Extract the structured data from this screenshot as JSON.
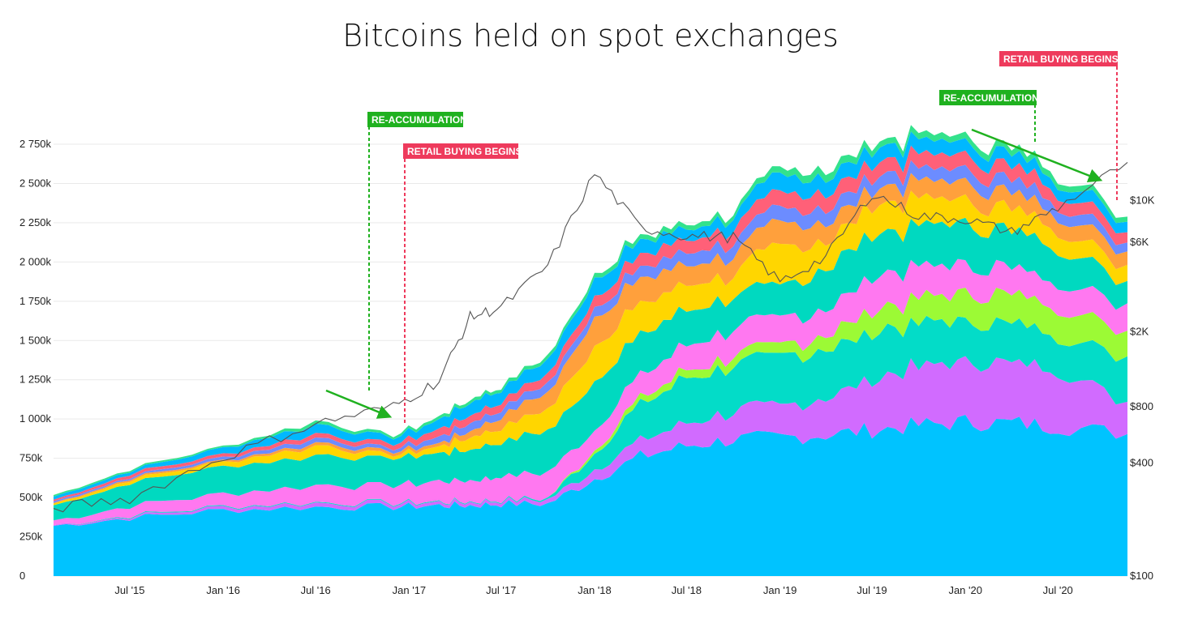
{
  "chart_data": {
    "type": "area",
    "title": "Bitcoins held on spot exchanges",
    "stacked": true,
    "x": [
      "2015-02-01",
      "2015-07-01",
      "2016-01-01",
      "2016-07-01",
      "2016-12-01",
      "2017-03-01",
      "2017-05-01",
      "2017-07-01",
      "2017-10-01",
      "2018-01-01",
      "2018-04-01",
      "2018-07-01",
      "2018-10-01",
      "2019-01-01",
      "2019-04-01",
      "2019-07-01",
      "2019-10-01",
      "2020-01-01",
      "2020-04-01",
      "2020-07-01",
      "2020-11-15"
    ],
    "x_ticks": [
      "Jul '15",
      "Jan '16",
      "Jul '16",
      "Jan '17",
      "Jul '17",
      "Jan '18",
      "Jul '18",
      "Jan '19",
      "Jul '19",
      "Jan '20",
      "Jul '20"
    ],
    "y_ticks": [
      "0",
      "250k",
      "500k",
      "750k",
      "1 000k",
      "1 250k",
      "1 500k",
      "1 750k",
      "2 000k",
      "2 250k",
      "2 500k",
      "2 750k"
    ],
    "ylim": [
      0,
      2750000
    ],
    "y2_ticks": [
      "$100",
      "$400",
      "$800",
      "$2K",
      "$6K",
      "$10K"
    ],
    "y2_values": [
      100,
      400,
      800,
      2000,
      6000,
      10000
    ],
    "y2_scale": "log",
    "grid": true,
    "series": [
      {
        "color": "#00c3ff",
        "values": [
          320000,
          370000,
          420000,
          440000,
          440000,
          450000,
          450000,
          460000,
          460000,
          620000,
          760000,
          830000,
          870000,
          880000,
          900000,
          930000,
          960000,
          980000,
          975000,
          955000,
          905000
        ]
      },
      {
        "color": "#d16bff",
        "values": [
          5000,
          10000,
          20000,
          25000,
          20000,
          20000,
          20000,
          20000,
          25000,
          60000,
          100000,
          140000,
          180000,
          200000,
          240000,
          320000,
          370000,
          390000,
          390000,
          370000,
          200000
        ]
      },
      {
        "color": "#03dcc8",
        "values": [
          0,
          5000,
          5000,
          5000,
          5000,
          5000,
          5000,
          5000,
          10000,
          100000,
          240000,
          280000,
          300000,
          320000,
          320000,
          300000,
          270000,
          260000,
          250000,
          230000,
          290000
        ]
      },
      {
        "color": "#9cfa35",
        "values": [
          0,
          0,
          0,
          0,
          0,
          0,
          0,
          0,
          0,
          20000,
          40000,
          50000,
          60000,
          70000,
          90000,
          140000,
          160000,
          180000,
          190000,
          180000,
          160000
        ]
      },
      {
        "color": "#ff78f0",
        "values": [
          30000,
          60000,
          80000,
          110000,
          110000,
          130000,
          130000,
          150000,
          170000,
          130000,
          150000,
          160000,
          170000,
          180000,
          160000,
          210000,
          200000,
          180000,
          170000,
          160000,
          170000
        ]
      },
      {
        "color": "#00d9c0",
        "values": [
          100000,
          150000,
          170000,
          200000,
          170000,
          180000,
          200000,
          220000,
          260000,
          300000,
          260000,
          230000,
          200000,
          200000,
          260000,
          270000,
          260000,
          260000,
          240000,
          220000,
          150000
        ]
      },
      {
        "color": "#ffd600",
        "values": [
          10000,
          20000,
          30000,
          60000,
          20000,
          40000,
          80000,
          90000,
          140000,
          220000,
          200000,
          160000,
          140000,
          260000,
          170000,
          180000,
          170000,
          150000,
          140000,
          120000,
          100000
        ]
      },
      {
        "color": "#ffa03c",
        "values": [
          5000,
          10000,
          10000,
          20000,
          20000,
          20000,
          40000,
          70000,
          110000,
          180000,
          160000,
          130000,
          120000,
          150000,
          120000,
          100000,
          110000,
          110000,
          100000,
          100000,
          90000
        ]
      },
      {
        "color": "#6c8cff",
        "values": [
          10000,
          10000,
          20000,
          30000,
          20000,
          40000,
          50000,
          50000,
          60000,
          60000,
          70000,
          80000,
          80000,
          90000,
          90000,
          80000,
          80000,
          80000,
          80000,
          70000,
          60000
        ]
      },
      {
        "color": "#ff6078",
        "values": [
          10000,
          20000,
          20000,
          30000,
          30000,
          50000,
          50000,
          50000,
          60000,
          70000,
          80000,
          80000,
          90000,
          100000,
          100000,
          90000,
          90000,
          90000,
          90000,
          80000,
          70000
        ]
      },
      {
        "color": "#00b8ff",
        "values": [
          20000,
          20000,
          40000,
          60000,
          40000,
          60000,
          80000,
          80000,
          90000,
          110000,
          90000,
          70000,
          80000,
          110000,
          100000,
          90000,
          90000,
          80000,
          80000,
          70000,
          70000
        ]
      },
      {
        "color": "#33e28c",
        "values": [
          10000,
          10000,
          10000,
          20000,
          15000,
          20000,
          20000,
          20000,
          25000,
          30000,
          30000,
          30000,
          30000,
          40000,
          50000,
          40000,
          40000,
          40000,
          40000,
          40000,
          30000
        ]
      }
    ],
    "price_line": {
      "color": "#555555",
      "y_scale": "log",
      "values": [
        230,
        260,
        430,
        650,
        800,
        1100,
        2400,
        2700,
        4500,
        14000,
        7200,
        6500,
        6400,
        3700,
        5000,
        11000,
        8300,
        8000,
        6800,
        9200,
        16000
      ]
    },
    "annotations": [
      {
        "label": "RE-ACCUMULATION",
        "color": "#1fb11f"
      },
      {
        "label": "RETAIL BUYING BEGINS",
        "color": "#ee3a5c"
      },
      {
        "label": "RE-ACCUMULATION",
        "color": "#1fb11f"
      },
      {
        "label": "RETAIL BUYING BEGINS?",
        "color": "#ee3a5c"
      }
    ]
  }
}
